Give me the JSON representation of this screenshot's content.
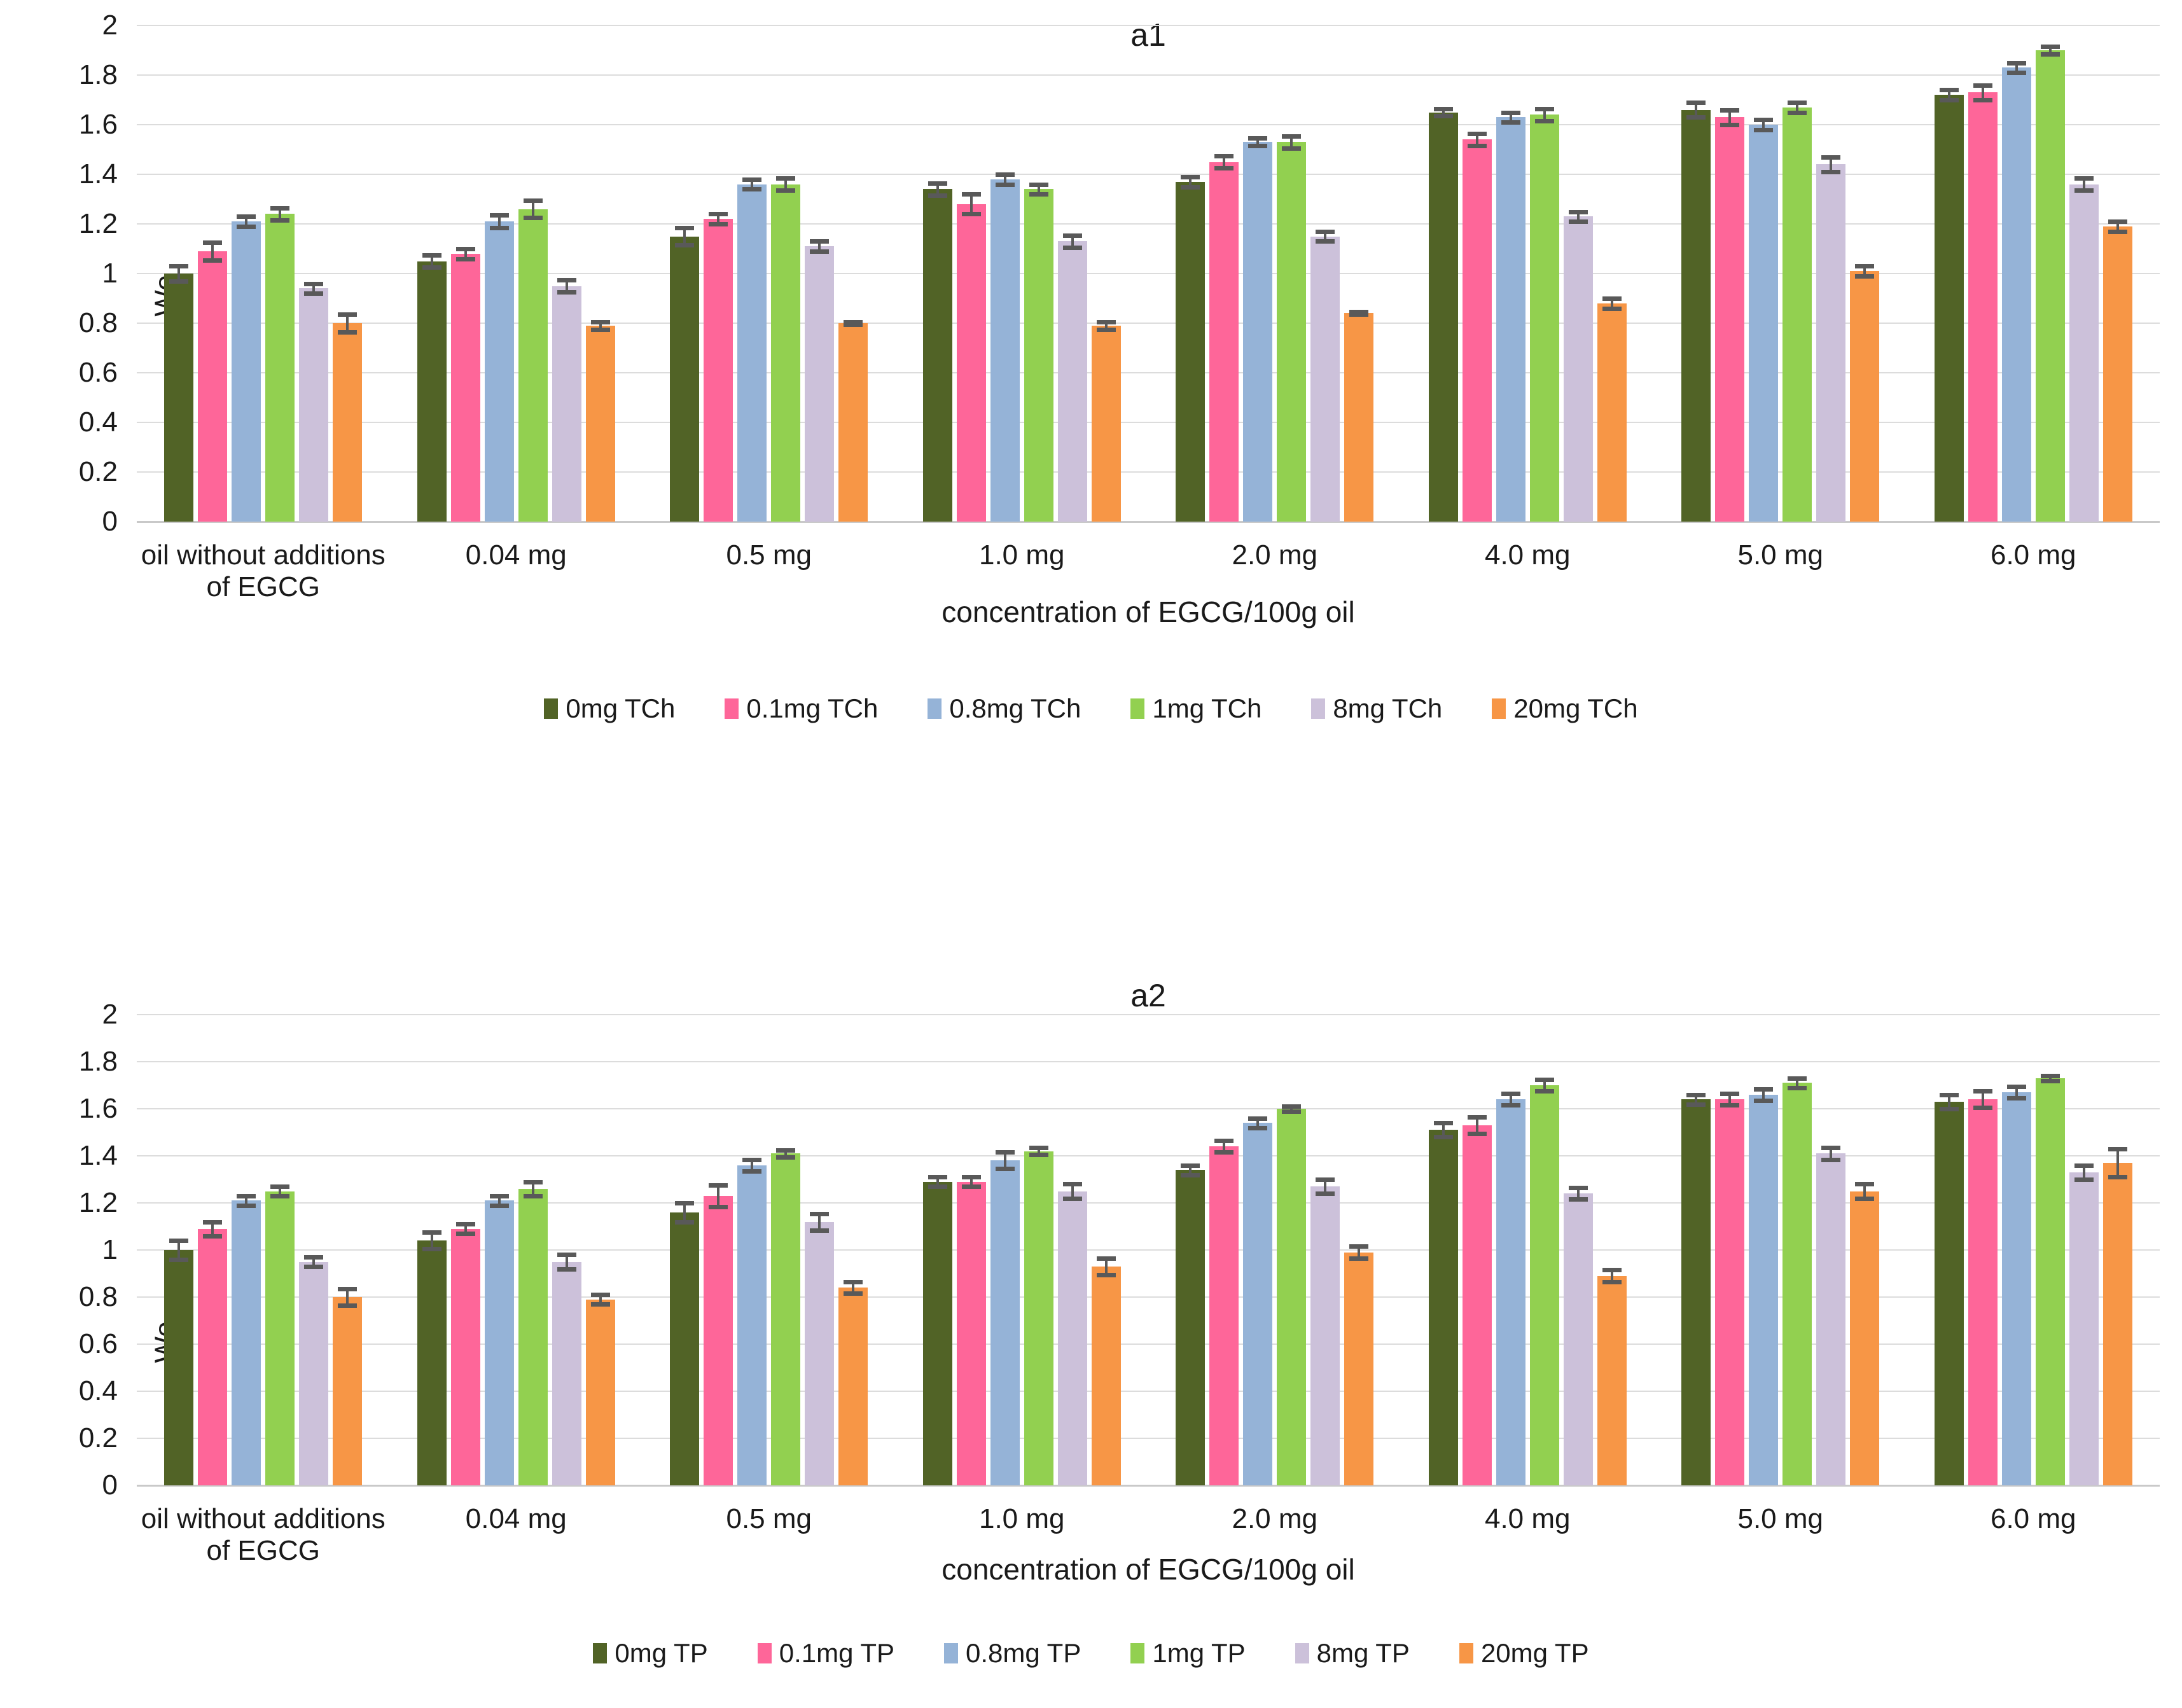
{
  "colors": {
    "series": [
      "#516326",
      "#fe6699",
      "#95b3d7",
      "#92d050",
      "#ccc1da",
      "#f79646"
    ],
    "error_bar": "#595959",
    "gridline": "#dcdcdc",
    "baseline": "#c9c9c9",
    "text": "#1a1a1a"
  },
  "chart_data": [
    {
      "type": "bar",
      "title": "a1",
      "ylabel": "Wo",
      "xlabel": "concentration of EGCG/100g oil",
      "ylim": [
        0,
        2
      ],
      "ytick_step": 0.2,
      "grid": true,
      "legend_position": "bottom",
      "categories": [
        "oil without additions of EGCG",
        "0.04 mg",
        "0.5 mg",
        "1.0 mg",
        "2.0 mg",
        "4.0 mg",
        "5.0 mg",
        "6.0 mg"
      ],
      "series": [
        {
          "name": "0mg TCh",
          "color": "#516326",
          "values": [
            1.0,
            1.05,
            1.15,
            1.34,
            1.37,
            1.65,
            1.66,
            1.72
          ],
          "errors": [
            0.03,
            0.025,
            0.035,
            0.025,
            0.02,
            0.015,
            0.03,
            0.02
          ]
        },
        {
          "name": "0.1mg TCh",
          "color": "#fe6699",
          "values": [
            1.09,
            1.08,
            1.22,
            1.28,
            1.45,
            1.54,
            1.63,
            1.73
          ],
          "errors": [
            0.035,
            0.02,
            0.02,
            0.04,
            0.025,
            0.025,
            0.03,
            0.03
          ]
        },
        {
          "name": "0.8mg TCh",
          "color": "#95b3d7",
          "values": [
            1.21,
            1.21,
            1.36,
            1.38,
            1.53,
            1.63,
            1.6,
            1.83
          ],
          "errors": [
            0.02,
            0.025,
            0.02,
            0.02,
            0.015,
            0.02,
            0.02,
            0.02
          ]
        },
        {
          "name": "1mg TCh",
          "color": "#92d050",
          "values": [
            1.24,
            1.26,
            1.36,
            1.34,
            1.53,
            1.64,
            1.67,
            1.9
          ],
          "errors": [
            0.025,
            0.035,
            0.025,
            0.02,
            0.025,
            0.025,
            0.02,
            0.015
          ]
        },
        {
          "name": "8mg TCh",
          "color": "#ccc1da",
          "values": [
            0.94,
            0.95,
            1.11,
            1.13,
            1.15,
            1.23,
            1.44,
            1.36
          ],
          "errors": [
            0.02,
            0.025,
            0.02,
            0.025,
            0.02,
            0.02,
            0.03,
            0.025
          ]
        },
        {
          "name": "20mg TCh",
          "color": "#f79646",
          "values": [
            0.8,
            0.79,
            0.8,
            0.79,
            0.84,
            0.88,
            1.01,
            1.19
          ],
          "errors": [
            0.035,
            0.015,
            0.005,
            0.015,
            0.005,
            0.02,
            0.02,
            0.02
          ]
        }
      ]
    },
    {
      "type": "bar",
      "title": "a2",
      "ylabel": "Wo",
      "xlabel": "concentration of EGCG/100g oil",
      "ylim": [
        0,
        2
      ],
      "ytick_step": 0.2,
      "grid": true,
      "legend_position": "bottom",
      "categories": [
        "oil without additions of EGCG",
        "0.04 mg",
        "0.5 mg",
        "1.0 mg",
        "2.0 mg",
        "4.0 mg",
        "5.0 mg",
        "6.0 mg"
      ],
      "series": [
        {
          "name": "0mg TP",
          "color": "#516326",
          "values": [
            1.0,
            1.04,
            1.16,
            1.29,
            1.34,
            1.51,
            1.64,
            1.63
          ],
          "errors": [
            0.04,
            0.035,
            0.04,
            0.02,
            0.02,
            0.03,
            0.02,
            0.03
          ]
        },
        {
          "name": "0.1mg TP",
          "color": "#fe6699",
          "values": [
            1.09,
            1.09,
            1.23,
            1.29,
            1.44,
            1.53,
            1.64,
            1.64
          ],
          "errors": [
            0.03,
            0.02,
            0.045,
            0.02,
            0.025,
            0.035,
            0.025,
            0.035
          ]
        },
        {
          "name": "0.8mg TP",
          "color": "#95b3d7",
          "values": [
            1.21,
            1.21,
            1.36,
            1.38,
            1.54,
            1.64,
            1.66,
            1.67
          ],
          "errors": [
            0.02,
            0.02,
            0.025,
            0.035,
            0.02,
            0.025,
            0.025,
            0.025
          ]
        },
        {
          "name": "1mg TP",
          "color": "#92d050",
          "values": [
            1.25,
            1.26,
            1.41,
            1.42,
            1.6,
            1.7,
            1.71,
            1.73
          ],
          "errors": [
            0.02,
            0.03,
            0.015,
            0.015,
            0.01,
            0.025,
            0.02,
            0.01
          ]
        },
        {
          "name": "8mg TP",
          "color": "#ccc1da",
          "values": [
            0.95,
            0.95,
            1.12,
            1.25,
            1.27,
            1.24,
            1.41,
            1.33
          ],
          "errors": [
            0.02,
            0.03,
            0.035,
            0.03,
            0.03,
            0.025,
            0.025,
            0.03
          ]
        },
        {
          "name": "20mg TP",
          "color": "#f79646",
          "values": [
            0.8,
            0.79,
            0.84,
            0.93,
            0.99,
            0.89,
            1.25,
            1.37
          ],
          "errors": [
            0.035,
            0.02,
            0.025,
            0.035,
            0.025,
            0.025,
            0.03,
            0.06
          ]
        }
      ]
    }
  ]
}
